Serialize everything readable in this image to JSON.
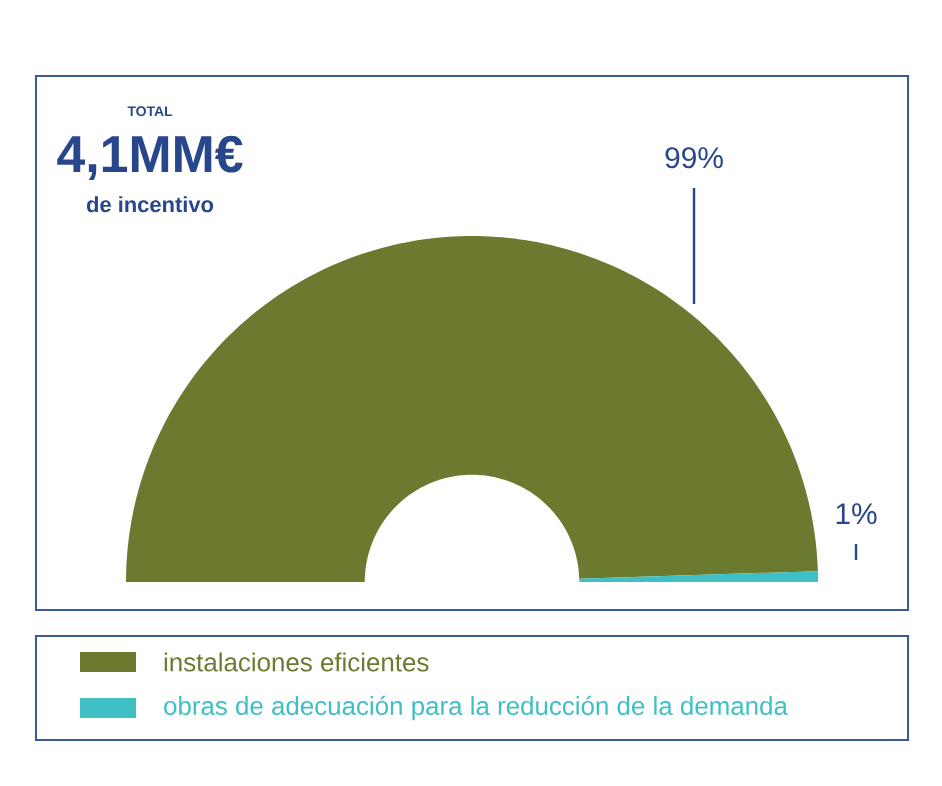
{
  "chart_data": {
    "type": "donut",
    "annotations": [
      "TOTAL",
      "4,1MM€",
      "de incentivo"
    ],
    "categories": [
      "instalaciones eficientes",
      "obras de adecuación para la reducción de la demanda"
    ],
    "values": [
      99,
      1
    ],
    "colors": [
      "#6b7a2e",
      "#3fbfc4"
    ],
    "value_labels": [
      "99%",
      "1%"
    ],
    "legend": "bottom"
  }
}
